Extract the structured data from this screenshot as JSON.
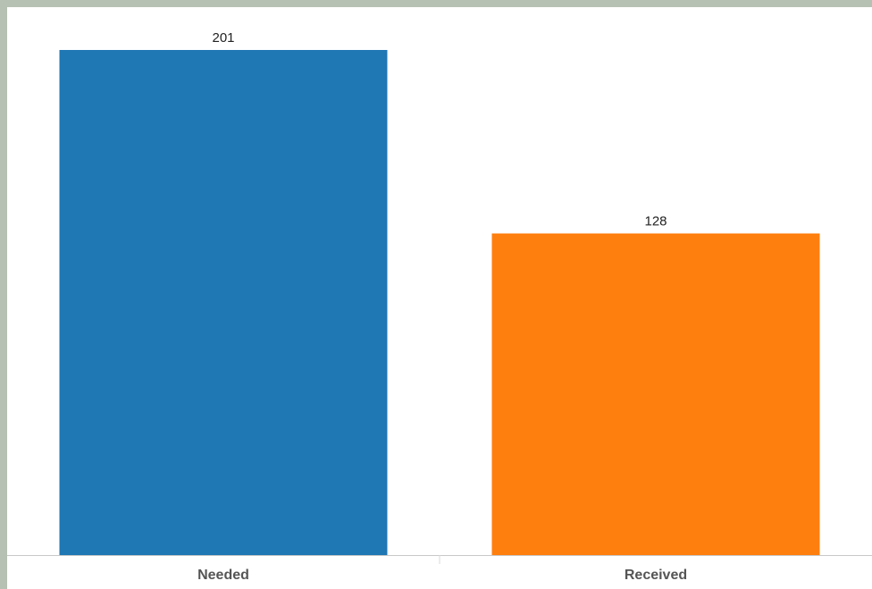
{
  "chart_data": {
    "type": "bar",
    "categories": [
      "Needed",
      "Received"
    ],
    "values": [
      201,
      128
    ],
    "colors": [
      "#1f77b4",
      "#ff7f0e"
    ],
    "title": "",
    "xlabel": "",
    "ylabel": "",
    "ylim": [
      0,
      201
    ],
    "grid": false,
    "legend": "none",
    "value_labels": true
  }
}
